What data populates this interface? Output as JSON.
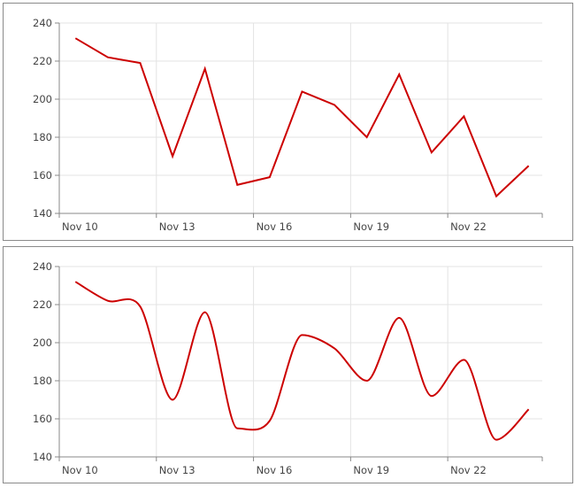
{
  "chart_data": [
    {
      "type": "line",
      "interpolation": "linear",
      "x": [
        "Nov 10",
        "Nov 11",
        "Nov 12",
        "Nov 13",
        "Nov 14",
        "Nov 15",
        "Nov 16",
        "Nov 17",
        "Nov 18",
        "Nov 19",
        "Nov 20",
        "Nov 21",
        "Nov 22",
        "Nov 23",
        "Nov 24"
      ],
      "values": [
        232,
        222,
        219,
        170,
        216,
        155,
        159,
        204,
        197,
        180,
        213,
        172,
        191,
        149,
        165
      ],
      "ylim": [
        140,
        240
      ],
      "yticks": [
        "140",
        "160",
        "180",
        "200",
        "220",
        "240"
      ],
      "xticks": [
        "Nov 10",
        "Nov 13",
        "Nov 16",
        "Nov 19",
        "Nov 22"
      ],
      "xlim": [
        "Nov 10",
        "Nov 25"
      ],
      "grid": true,
      "color": "#cc0000"
    },
    {
      "type": "line",
      "interpolation": "spline",
      "x": [
        "Nov 10",
        "Nov 11",
        "Nov 12",
        "Nov 13",
        "Nov 14",
        "Nov 15",
        "Nov 16",
        "Nov 17",
        "Nov 18",
        "Nov 19",
        "Nov 20",
        "Nov 21",
        "Nov 22",
        "Nov 23",
        "Nov 24"
      ],
      "values": [
        232,
        222,
        219,
        170,
        216,
        155,
        159,
        204,
        197,
        180,
        213,
        172,
        191,
        149,
        165
      ],
      "ylim": [
        140,
        240
      ],
      "yticks": [
        "140",
        "160",
        "180",
        "200",
        "220",
        "240"
      ],
      "xticks": [
        "Nov 10",
        "Nov 13",
        "Nov 16",
        "Nov 19",
        "Nov 22"
      ],
      "xlim": [
        "Nov 10",
        "Nov 25"
      ],
      "grid": true,
      "color": "#cc0000"
    }
  ]
}
